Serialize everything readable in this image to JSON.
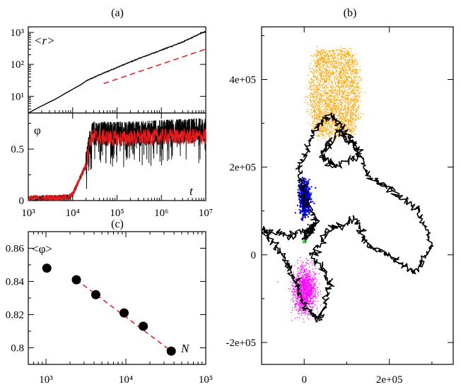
{
  "figure_labels": {
    "a": "(a)",
    "b": "(b)",
    "c": "(c)"
  },
  "chart_data": [
    {
      "id": "a-top",
      "type": "line",
      "title": "",
      "inset_label": "<r>",
      "xscale": "log",
      "yscale": "log",
      "xlim": [
        1000,
        10000000
      ],
      "ylim": [
        3,
        1500
      ],
      "ytick_labels": [
        "10¹",
        "10²",
        "10³"
      ],
      "ytick_values": [
        10,
        100,
        1000
      ],
      "series": [
        {
          "color": "#000000",
          "style": "solid",
          "x": [
            1000,
            2000,
            4000,
            8000,
            16000,
            20000,
            40000,
            100000,
            300000,
            1000000,
            3000000,
            10000000
          ],
          "y": [
            3,
            5,
            8,
            14,
            24,
            30,
            47,
            80,
            150,
            280,
            500,
            1100
          ]
        },
        {
          "color": "#e41a1c",
          "style": "dashed",
          "x": [
            50000,
            10000000
          ],
          "y": [
            25,
            300
          ]
        }
      ]
    },
    {
      "id": "a-bottom",
      "type": "line",
      "title": "",
      "inset_label": "φ",
      "xlabel": "t",
      "xscale": "log",
      "xlim": [
        1000,
        10000000
      ],
      "ylim": [
        0,
        0.85
      ],
      "xtick_labels": [
        "10³",
        "10⁴",
        "10⁵",
        "10⁶",
        "10⁷"
      ],
      "xtick_values": [
        1000,
        10000,
        100000,
        1000000,
        10000000
      ],
      "ytick_labels": [
        "0",
        "0.5"
      ],
      "ytick_values": [
        0,
        0.5
      ],
      "series": [
        {
          "color": "#000000",
          "mean": [
            [
              1000,
              0.02
            ],
            [
              8000,
              0.03
            ],
            [
              10000,
              0.06
            ],
            [
              20000,
              0.35
            ],
            [
              25000,
              0.6
            ],
            [
              30000,
              0.65
            ],
            [
              100000,
              0.64
            ],
            [
              1000000,
              0.66
            ],
            [
              10000000,
              0.68
            ]
          ],
          "amplitude": 0.2
        },
        {
          "color": "#e41a1c",
          "mean": [
            [
              1000,
              0.02
            ],
            [
              8000,
              0.03
            ],
            [
              10000,
              0.06
            ],
            [
              20000,
              0.35
            ],
            [
              25000,
              0.6
            ],
            [
              30000,
              0.62
            ],
            [
              100000,
              0.6
            ],
            [
              1000000,
              0.62
            ],
            [
              10000000,
              0.62
            ]
          ],
          "amplitude": 0.08
        }
      ]
    },
    {
      "id": "c",
      "type": "scatter",
      "title": "",
      "inset_label": "<φ>",
      "xlabel": "N",
      "xscale": "log",
      "xlim": [
        600,
        100000
      ],
      "ylim": [
        0.79,
        0.87
      ],
      "xtick_labels": [
        "10³",
        "10⁴",
        "10⁵"
      ],
      "xtick_values": [
        1000,
        10000,
        100000
      ],
      "ytick_labels": [
        "0.8",
        "0.82",
        "0.84",
        "0.86"
      ],
      "ytick_values": [
        0.8,
        0.82,
        0.84,
        0.86
      ],
      "points": {
        "x": [
          1024,
          2400,
          4200,
          9500,
          16500,
          37000
        ],
        "y": [
          0.848,
          0.841,
          0.832,
          0.821,
          0.813,
          0.798
        ]
      },
      "fit": {
        "color": "#e41a1c",
        "style": "dashed",
        "x": [
          2400,
          37000
        ],
        "y": [
          0.841,
          0.798
        ]
      }
    },
    {
      "id": "b",
      "type": "scatter",
      "title": "",
      "xlim": [
        -100000,
        350000
      ],
      "ylim": [
        -250000,
        520000
      ],
      "xtick_labels": [
        "0",
        "2e+05"
      ],
      "xtick_values": [
        0,
        200000
      ],
      "ytick_labels": [
        "-2e+05",
        "0",
        "2e+05",
        "4e+05"
      ],
      "ytick_values": [
        -200000,
        0,
        200000,
        400000
      ],
      "clusters": [
        {
          "color": "#ffa500",
          "center": [
            70000,
            370000
          ],
          "spread": [
            55000,
            95000
          ],
          "count": 2600
        },
        {
          "color": "#0000cd",
          "center": [
            0,
            130000
          ],
          "spread": [
            11000,
            35000
          ],
          "count": 600
        },
        {
          "color": "#00cc00",
          "center": [
            0,
            35000
          ],
          "spread": [
            4000,
            7000
          ],
          "count": 40
        },
        {
          "color": "#ff00ff",
          "center": [
            0,
            -80000
          ],
          "spread": [
            22000,
            45000
          ],
          "count": 1200
        }
      ],
      "trajectory": {
        "color": "#000000",
        "steps": 900
      }
    }
  ]
}
